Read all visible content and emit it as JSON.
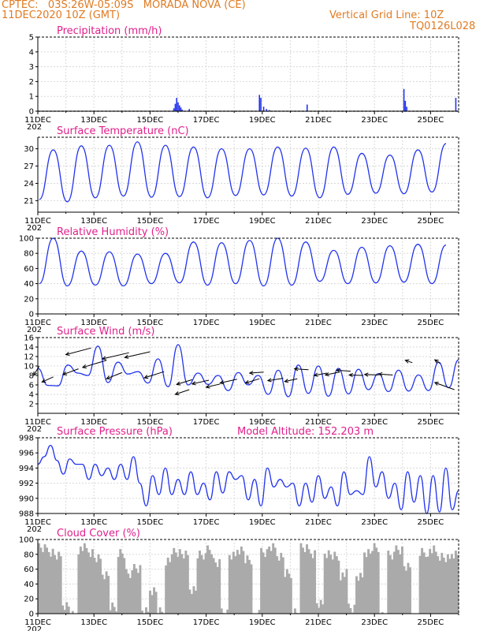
{
  "header": {
    "line1": "CPTEC:   03S:26W-05:09S   MORADA NOVA (CE)",
    "line2": "11DEC2020 10Z (GMT)",
    "right1": "Vertical Grid Line: 10Z",
    "right2": "TQ0126L028"
  },
  "x_ticks": [
    "11DEC",
    "13DEC",
    "15DEC",
    "17DEC",
    "19DEC",
    "21DEC",
    "23DEC",
    "25DEC"
  ],
  "x_year_fragment": "202",
  "chart_data": [
    {
      "id": "precip",
      "type": "bar",
      "title": "Precipitation (mm/h)",
      "ylim": [
        0,
        5
      ],
      "yticks": [
        0,
        1,
        2,
        3,
        4,
        5
      ],
      "color": "#2233ee",
      "x_unit": "days since 11DEC 10Z",
      "x": [
        4.85,
        4.9,
        4.95,
        5.0,
        5.05,
        5.1,
        5.15,
        5.4,
        7.9,
        7.95,
        8.05,
        8.15,
        8.25,
        9.6,
        13.05,
        13.1,
        13.15,
        14.9
      ],
      "values": [
        0.2,
        0.5,
        0.9,
        0.6,
        0.4,
        0.25,
        0.1,
        0.15,
        1.1,
        0.9,
        0.3,
        0.15,
        0.08,
        0.45,
        1.5,
        0.7,
        0.3,
        0.9
      ]
    },
    {
      "id": "temp",
      "type": "line",
      "title": "Surface Temperature (nC)",
      "ylim": [
        19,
        32
      ],
      "yticks": [
        21,
        24,
        27,
        30
      ],
      "color": "#2233ee",
      "min_values": [
        21.2,
        20.8,
        21.5,
        21.8,
        21.6,
        21.7,
        21.5,
        21.9,
        22.0,
        21.8,
        21.5,
        22.1,
        22.3,
        22.2,
        22.5
      ],
      "max_values": [
        29.8,
        30.5,
        30.6,
        31.2,
        30.6,
        30.3,
        30.0,
        30.0,
        30.3,
        30.1,
        30.3,
        29.2,
        28.9,
        29.8,
        30.9
      ]
    },
    {
      "id": "rh",
      "type": "line",
      "title": "Relative Humidity (%)",
      "ylim": [
        0,
        100
      ],
      "yticks": [
        0,
        20,
        40,
        60,
        80,
        100
      ],
      "color": "#2233ee",
      "min_values": [
        40,
        37,
        38,
        37,
        40,
        41,
        38,
        40,
        37,
        38,
        43,
        40,
        41,
        42,
        40
      ],
      "max_values": [
        100,
        83,
        82,
        79,
        80,
        95,
        94,
        97,
        100,
        95,
        84,
        88,
        90,
        92,
        91
      ]
    },
    {
      "id": "wind",
      "type": "line",
      "title": "Surface Wind (m/s)",
      "ylim": [
        0,
        16
      ],
      "yticks": [
        2,
        4,
        6,
        8,
        10,
        12,
        14,
        16
      ],
      "color": "#2233ee",
      "values": [
        9.5,
        5.9,
        5.8,
        10.2,
        8.5,
        8.0,
        14.2,
        6.5,
        10.8,
        8.3,
        8.8,
        6.4,
        11.5,
        5.6,
        14.5,
        6.0,
        8.5,
        6.1,
        8.0,
        4.8,
        8.6,
        6.0,
        8.0,
        4.0,
        9.1,
        3.5,
        10.2,
        4.2,
        10.0,
        3.6,
        9.5,
        4.1,
        9.3,
        5.0,
        8.4,
        4.6,
        9.1,
        4.7,
        8.1,
        4.8,
        10.8,
        5.4,
        11.3
      ],
      "arrows_x": [
        0.05,
        0.55,
        1.45,
        1.9,
        2.45,
        3.0,
        3.25,
        4.0,
        4.5,
        5.4,
        5.5,
        6.1,
        6.5,
        7.1,
        7.9,
        8.05,
        8.75,
        9.25,
        9.65,
        10.3,
        10.75,
        11.15,
        11.6,
        12.15,
        12.65,
        13.35,
        14.35,
        14.85
      ],
      "arrows_y": [
        10.0,
        7.7,
        9.4,
        13.8,
        11.2,
        8.6,
        12.8,
        13.0,
        8.8,
        5.0,
        7.1,
        7.0,
        6.2,
        7.2,
        7.3,
        8.7,
        7.4,
        7.3,
        9.2,
        8.5,
        8.7,
        8.9,
        8.0,
        8.1,
        8.1,
        10.7,
        10.5,
        5.0
      ],
      "arrows_dx": [
        -0.2,
        -0.4,
        -0.55,
        -0.9,
        -0.85,
        -0.55,
        -0.95,
        -0.9,
        -0.7,
        -0.5,
        -0.55,
        -0.6,
        -0.5,
        -0.6,
        -0.5,
        -0.5,
        -0.55,
        -0.45,
        -0.5,
        -0.45,
        -0.5,
        -0.5,
        -0.5,
        -0.5,
        -0.5,
        -0.25,
        -0.2,
        -0.7
      ],
      "arrows_dy": [
        -2.0,
        -1.1,
        -1.2,
        -1.4,
        -1.5,
        -1.3,
        -1.3,
        -1.2,
        -1.3,
        -1.0,
        -1.0,
        -0.8,
        -0.7,
        -0.8,
        -0.9,
        -0.2,
        -0.5,
        -0.6,
        0.2,
        -0.5,
        -0.6,
        0.2,
        0.1,
        0.1,
        0.2,
        0.5,
        0.8,
        1.5
      ]
    },
    {
      "id": "pressure",
      "type": "line",
      "title": "Surface Pressure (hPa)",
      "subtitle": "Model Altitude: 152.203 m",
      "ylim": [
        988,
        998
      ],
      "yticks": [
        988,
        990,
        992,
        994,
        996,
        998
      ],
      "color": "#2233ee",
      "values": [
        994.5,
        995.5,
        997.0,
        995.0,
        993.2,
        995.2,
        994.5,
        994.5,
        992.5,
        994.5,
        993.0,
        994.0,
        992.5,
        994.5,
        992.5,
        995.5,
        992.0,
        989.0,
        993.0,
        990.5,
        994.0,
        990.5,
        992.5,
        990.5,
        993.5,
        990.5,
        992.0,
        989.8,
        993.5,
        990.7,
        993.5,
        992.5,
        993.0,
        989.8,
        992.5,
        989.0,
        994.0,
        991.5,
        992.5,
        991.5,
        992.0,
        989.0,
        992.0,
        989.5,
        993.0,
        990.0,
        991.5,
        989.0,
        993.5,
        990.5,
        991.0,
        990.5,
        995.5,
        991.5,
        993.5,
        990.0,
        992.0,
        988.5,
        993.5,
        989.5,
        993.0,
        988.0,
        993.0,
        988.2,
        994.0,
        988.5,
        991.0
      ],
      "annotation_label": "Model Altitude: 152.203 m"
    },
    {
      "id": "cloud",
      "type": "area",
      "title": "Cloud Cover (%)",
      "ylim": [
        0,
        100
      ],
      "yticks": [
        0,
        20,
        40,
        60,
        80,
        100
      ],
      "color": "#aaaaaa",
      "values": [
        95,
        92,
        85,
        20,
        5,
        95,
        90,
        80,
        60,
        15,
        90,
        60,
        70,
        10,
        40,
        10,
        80,
        90,
        85,
        40,
        85,
        95,
        75,
        10,
        85,
        95,
        80,
        5,
        90,
        95,
        85,
        60,
        10,
        95,
        90,
        20,
        90,
        85,
        60,
        15,
        55,
        90,
        95,
        5,
        85,
        95,
        70,
        5,
        90,
        92,
        85,
        80,
        88
      ]
    }
  ]
}
